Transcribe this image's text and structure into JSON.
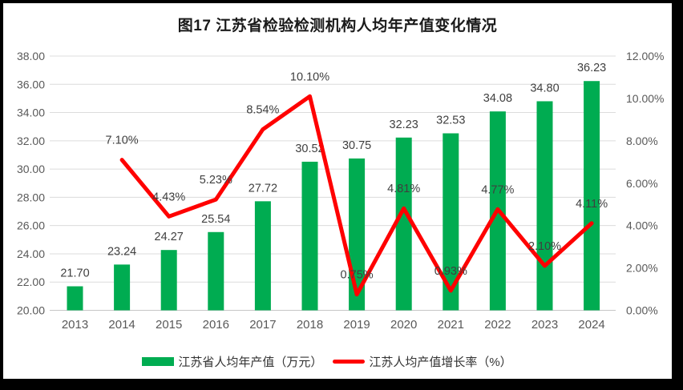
{
  "title": "图17  江苏省检验检测机构人均年产值变化情况",
  "colors": {
    "bar": "#00AC51",
    "line": "#FF0000",
    "grid": "#DCDCDC",
    "axis_line": "#C6C6C6",
    "axis_text": "#595959",
    "data_label": "#3F3F3F",
    "title_text": "#1A1A1A"
  },
  "legend": [
    {
      "label": "江苏省人均年产值（万元）"
    },
    {
      "label": "江苏人均产值增长率（%）"
    }
  ],
  "chart_data": {
    "type": "bar+line",
    "title": "图17  江苏省检验检测机构人均年产值变化情况",
    "categories": [
      "2013",
      "2014",
      "2015",
      "2016",
      "2017",
      "2018",
      "2019",
      "2020",
      "2021",
      "2022",
      "2023",
      "2024"
    ],
    "series": [
      {
        "name": "江苏省人均年产值（万元）",
        "type": "bar",
        "axis": "left",
        "values": [
          21.7,
          23.24,
          24.27,
          25.54,
          27.72,
          30.52,
          30.75,
          32.23,
          32.53,
          34.08,
          34.8,
          36.23
        ],
        "labels": [
          "21.70",
          "23.24",
          "24.27",
          "25.54",
          "27.72",
          "30.52",
          "30.75",
          "32.23",
          "32.53",
          "34.08",
          "34.80",
          "36.23"
        ]
      },
      {
        "name": "江苏人均产值增长率（%）",
        "type": "line",
        "axis": "right",
        "values": [
          null,
          7.1,
          4.43,
          5.23,
          8.54,
          10.1,
          0.75,
          4.81,
          0.93,
          4.77,
          2.1,
          4.11
        ],
        "labels": [
          null,
          "7.10%",
          "4.43%",
          "5.23%",
          "8.54%",
          "10.10%",
          "0.75%",
          "4.81%",
          "0.93%",
          "4.77%",
          "2.10%",
          "4.11%"
        ]
      }
    ],
    "left_axis": {
      "min": 20,
      "max": 38,
      "step": 2,
      "ticks": [
        "38.00",
        "36.00",
        "34.00",
        "32.00",
        "30.00",
        "28.00",
        "26.00",
        "24.00",
        "22.00",
        "20.00"
      ]
    },
    "right_axis": {
      "min": 0,
      "max": 12,
      "step": 2,
      "ticks": [
        "12.00%",
        "10.00%",
        "8.00%",
        "6.00%",
        "4.00%",
        "2.00%",
        "0.00%"
      ]
    },
    "grid": "horizontal",
    "legend_position": "bottom"
  }
}
